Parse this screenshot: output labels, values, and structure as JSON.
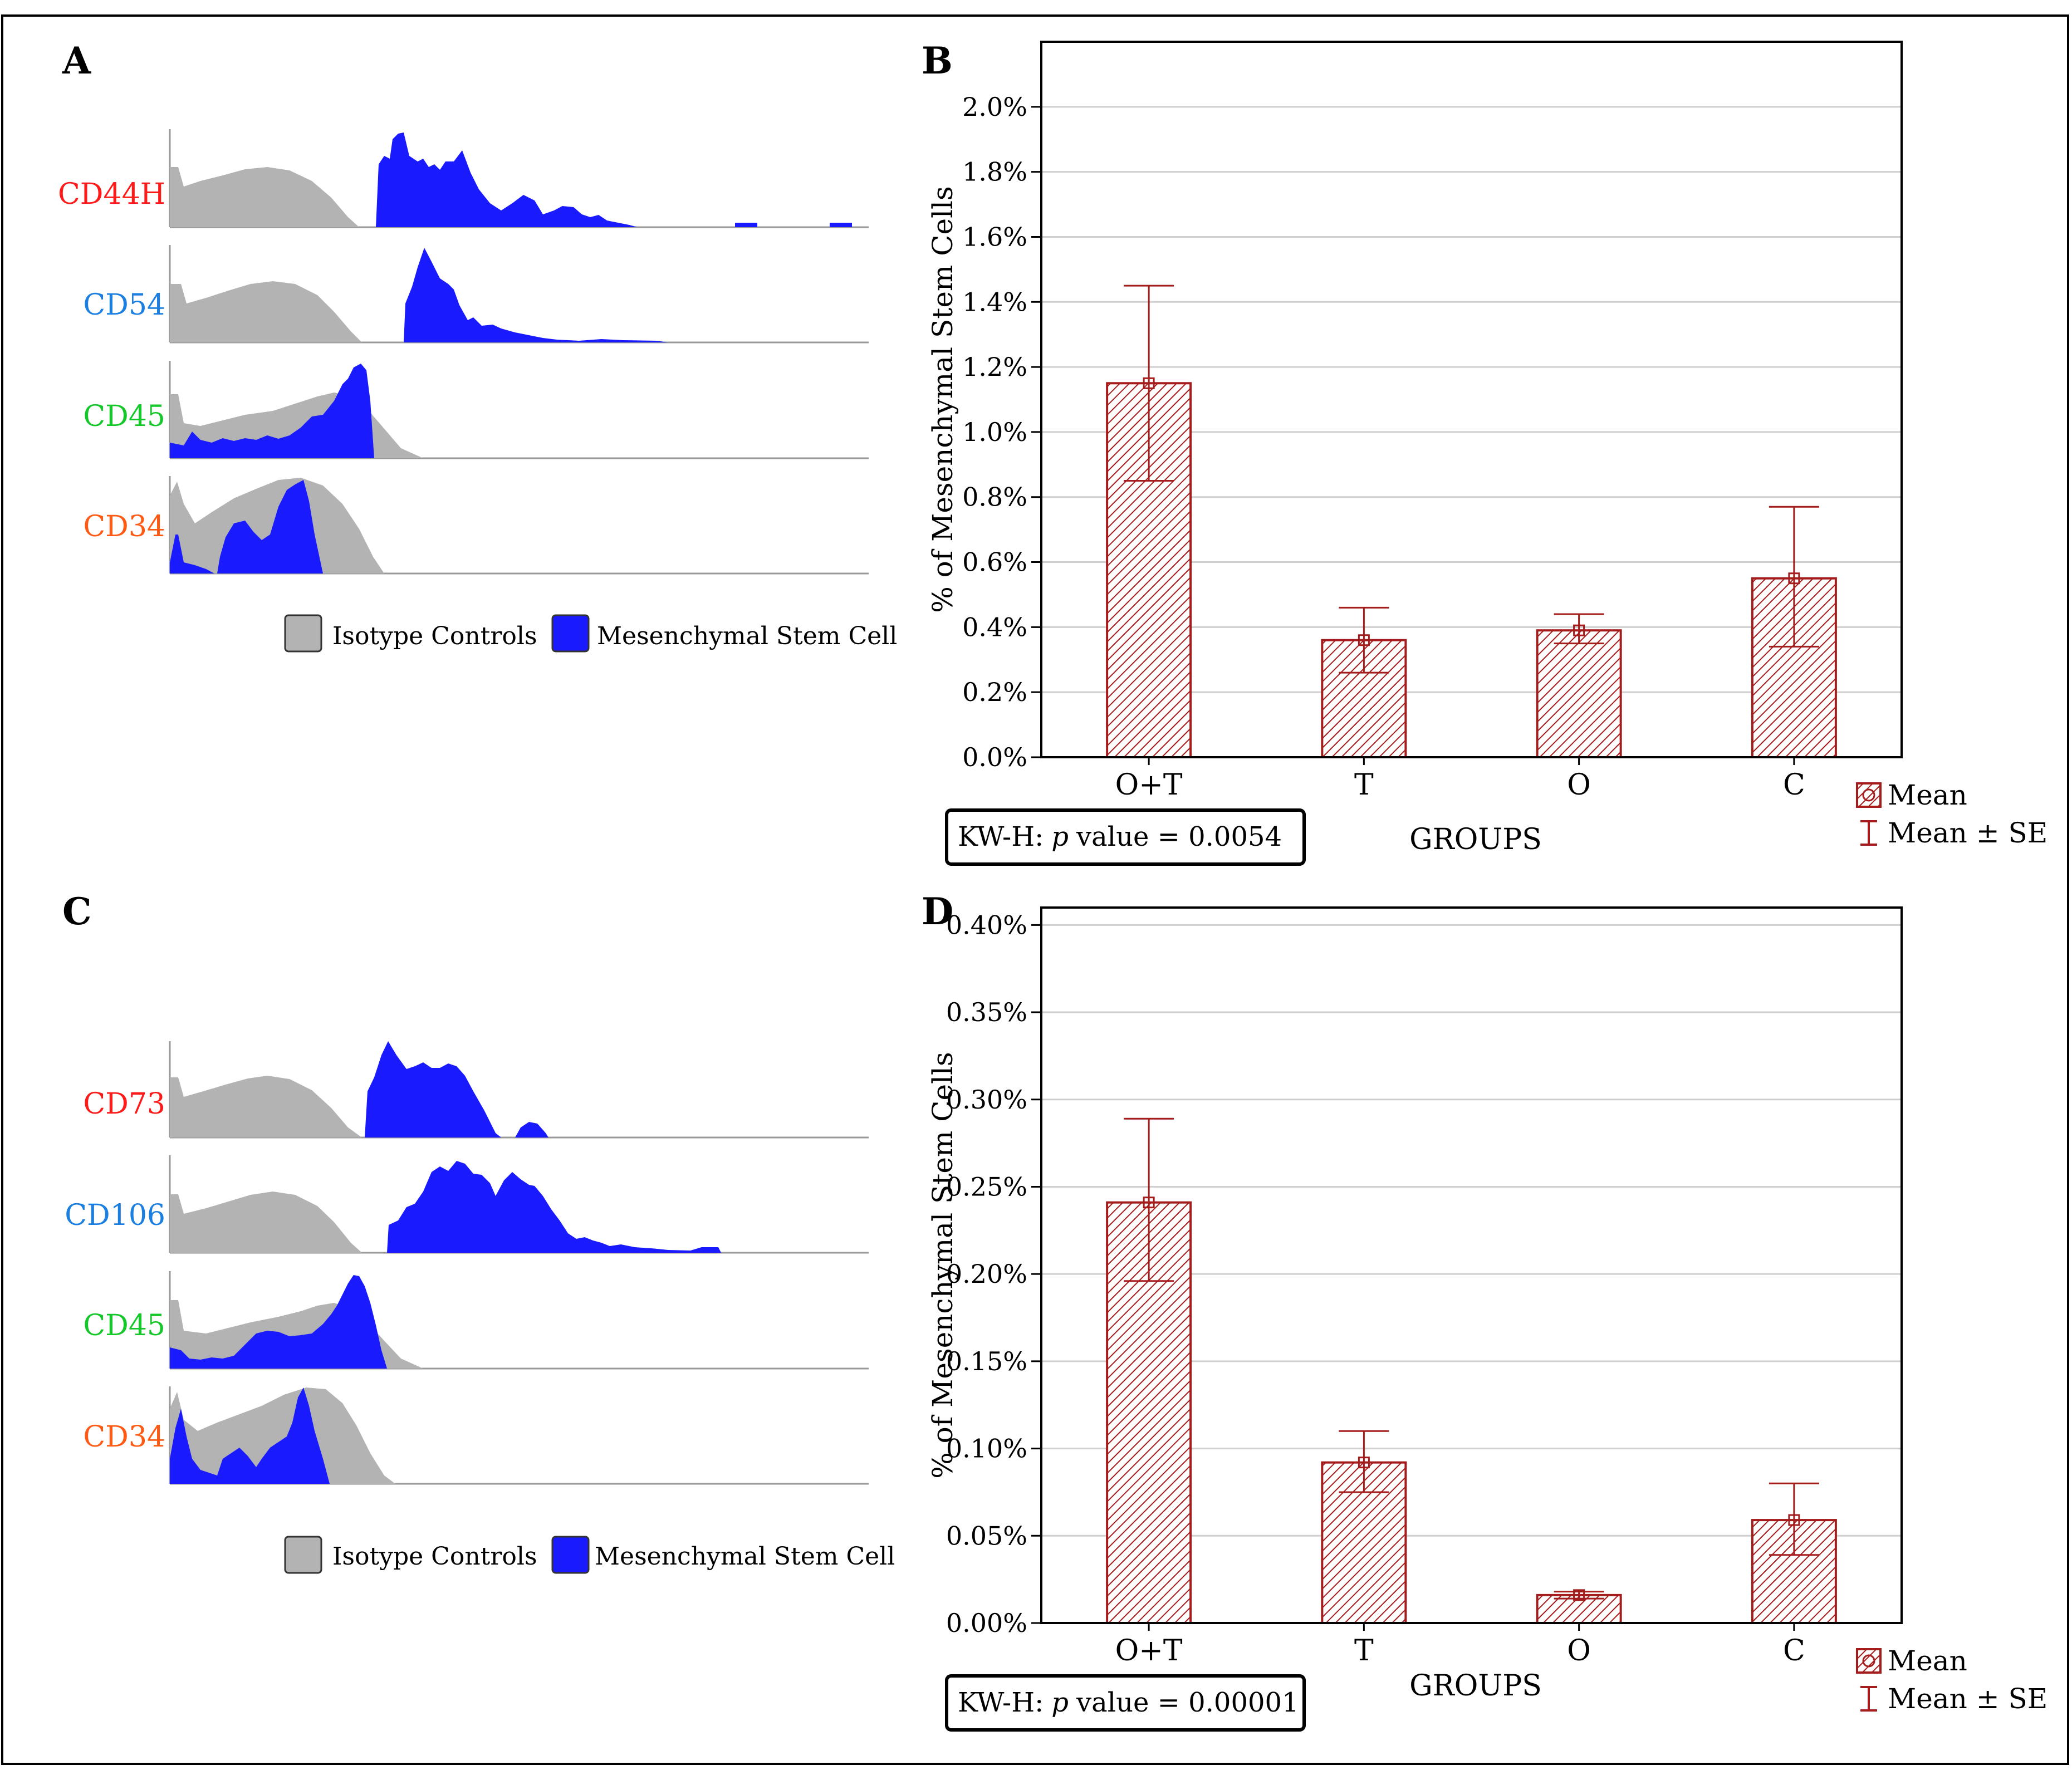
{
  "panels": {
    "A": {
      "letter": "A",
      "markers": [
        {
          "name": "CD44H",
          "color": "#ff1a1a"
        },
        {
          "name": "CD54",
          "color": "#1a7fe0"
        },
        {
          "name": "CD45",
          "color": "#14c82a"
        },
        {
          "name": "CD34",
          "color": "#ff5a14"
        }
      ],
      "legend": {
        "isotype": "Isotype Controls",
        "msc": "Mesenchymal Stem Cell"
      }
    },
    "C": {
      "letter": "C",
      "markers": [
        {
          "name": "CD73",
          "color": "#ff1a1a"
        },
        {
          "name": "CD106",
          "color": "#1a7fe0"
        },
        {
          "name": "CD45",
          "color": "#14c82a"
        },
        {
          "name": "CD34",
          "color": "#ff5a14"
        }
      ],
      "legend": {
        "isotype": "Isotype Controls",
        "msc": "Mesenchymal Stem Cell"
      }
    }
  },
  "colors": {
    "isotype": "#b3b3b3",
    "msc": "#1a1aff",
    "bar": "#a51c1c"
  },
  "chart_data": [
    {
      "panel": "B",
      "type": "bar",
      "categories": [
        "O+T",
        "T",
        "O",
        "C"
      ],
      "values": [
        1.15,
        0.36,
        0.39,
        0.55
      ],
      "se_upper": [
        1.45,
        0.46,
        0.44,
        0.77
      ],
      "se_lower": [
        0.85,
        0.26,
        0.35,
        0.34
      ],
      "ylim": [
        0,
        2.2
      ],
      "yticks": [
        0.0,
        0.2,
        0.4,
        0.6,
        0.8,
        1.0,
        1.2,
        1.4,
        1.6,
        1.8,
        2.0
      ],
      "ytick_labels": [
        "0.0%",
        "0.2%",
        "0.4%",
        "0.6%",
        "0.8%",
        "1.0%",
        "1.2%",
        "1.4%",
        "1.6%",
        "1.8%",
        "2.0%"
      ],
      "ylabel": "% of Mesenchymal Stem Cells",
      "xlabel": "GROUPS",
      "legend": [
        "Mean",
        "Mean ± SE"
      ],
      "stat_prefix": "KW-H:",
      "stat_p": "p",
      "stat_suffix": "value = 0.0054"
    },
    {
      "panel": "D",
      "type": "bar",
      "categories": [
        "O+T",
        "T",
        "O",
        "C"
      ],
      "values": [
        0.241,
        0.092,
        0.016,
        0.059
      ],
      "se_upper": [
        0.289,
        0.11,
        0.018,
        0.08
      ],
      "se_lower": [
        0.196,
        0.075,
        0.014,
        0.039
      ],
      "ylim": [
        0,
        0.41
      ],
      "yticks": [
        0.0,
        0.05,
        0.1,
        0.15,
        0.2,
        0.25,
        0.3,
        0.35,
        0.4
      ],
      "ytick_labels": [
        "0.00%",
        "0.05%",
        "0.10%",
        "0.15%",
        "0.20%",
        "0.25%",
        "0.30%",
        "0.35%",
        "0.40%"
      ],
      "ylabel": "% of Mesenchymal Stem Cells",
      "xlabel": "GROUPS",
      "legend": [
        "Mean",
        "Mean ± SE"
      ],
      "stat_prefix": "KW-H:",
      "stat_p": "p",
      "stat_suffix": "value = 0.00001"
    }
  ]
}
